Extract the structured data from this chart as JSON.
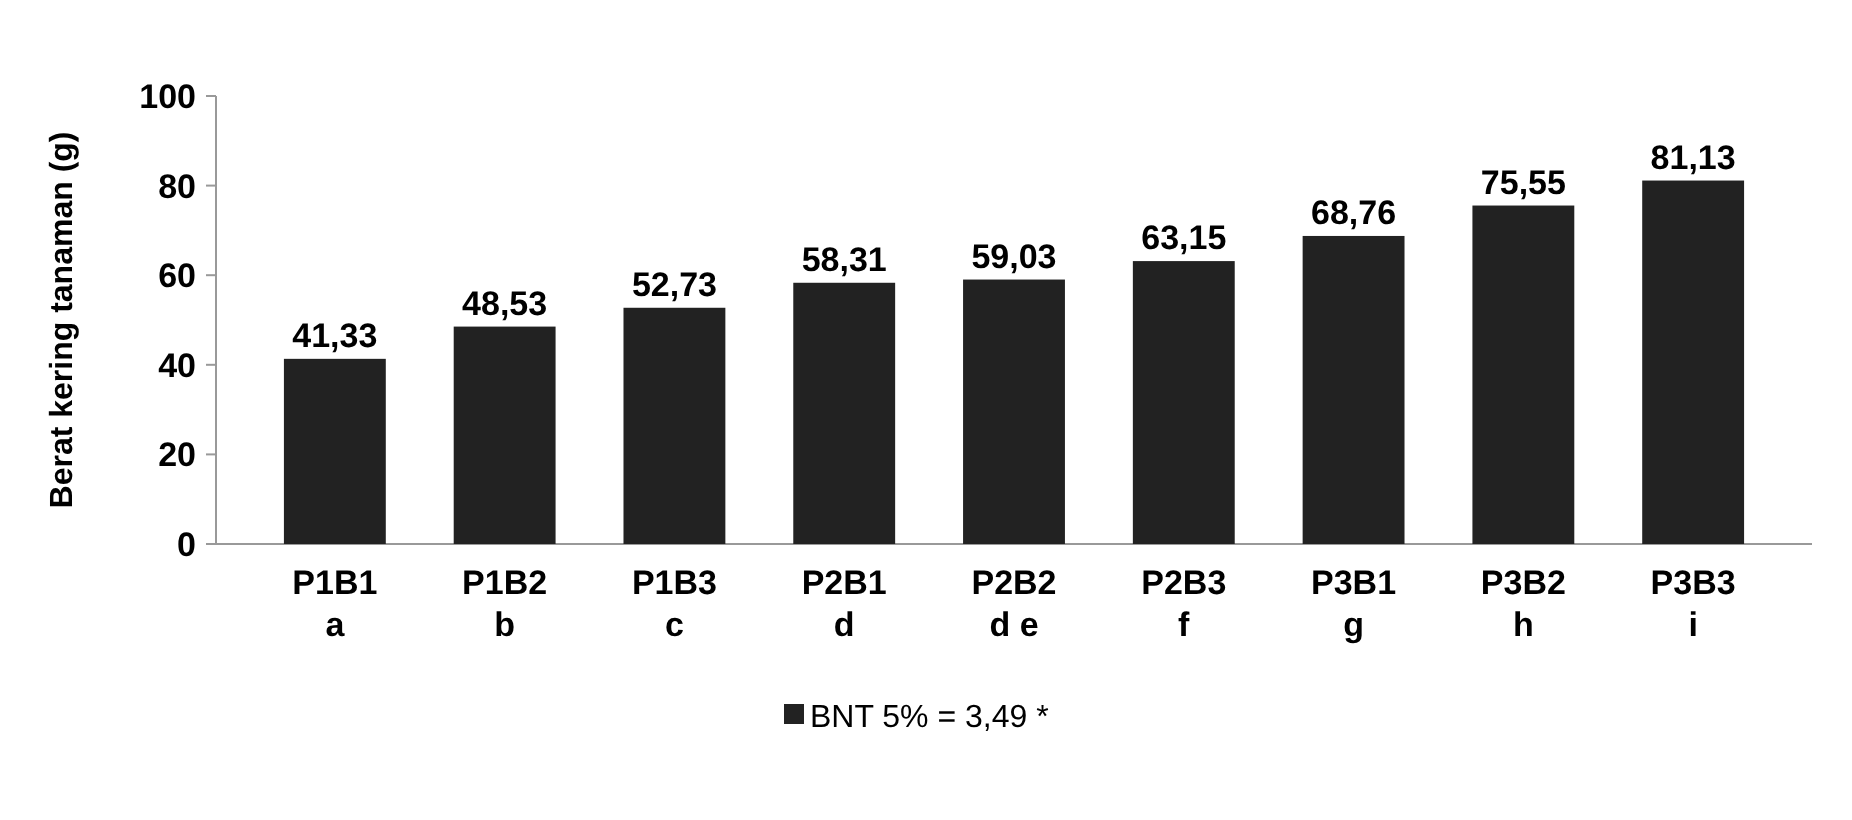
{
  "chart_data": {
    "type": "bar",
    "ylabel": "Berat kering  tanaman (g)",
    "categories": [
      "P1B1\na",
      "P1B2\nb",
      "P1B3\nc",
      "P2B1\nd",
      "P2B2\nd e",
      "P2B3\nf",
      "P3B1\ng",
      "P3B2\nh",
      "P3B3\ni"
    ],
    "series": [
      {
        "name": "BNT 5% = 3,49 *",
        "color": "#222222",
        "values": [
          41.33,
          48.53,
          52.73,
          58.31,
          59.03,
          63.15,
          68.76,
          75.55,
          81.13
        ],
        "value_labels": [
          "41,33",
          "48,53",
          "52,73",
          "58,31",
          "59,03",
          "63,15",
          "68,76",
          "75,55",
          "81,13"
        ]
      }
    ],
    "ylim": [
      0,
      100
    ],
    "yticks": [
      0,
      20,
      40,
      60,
      80,
      100
    ],
    "grid": false,
    "legend": "bottom"
  }
}
